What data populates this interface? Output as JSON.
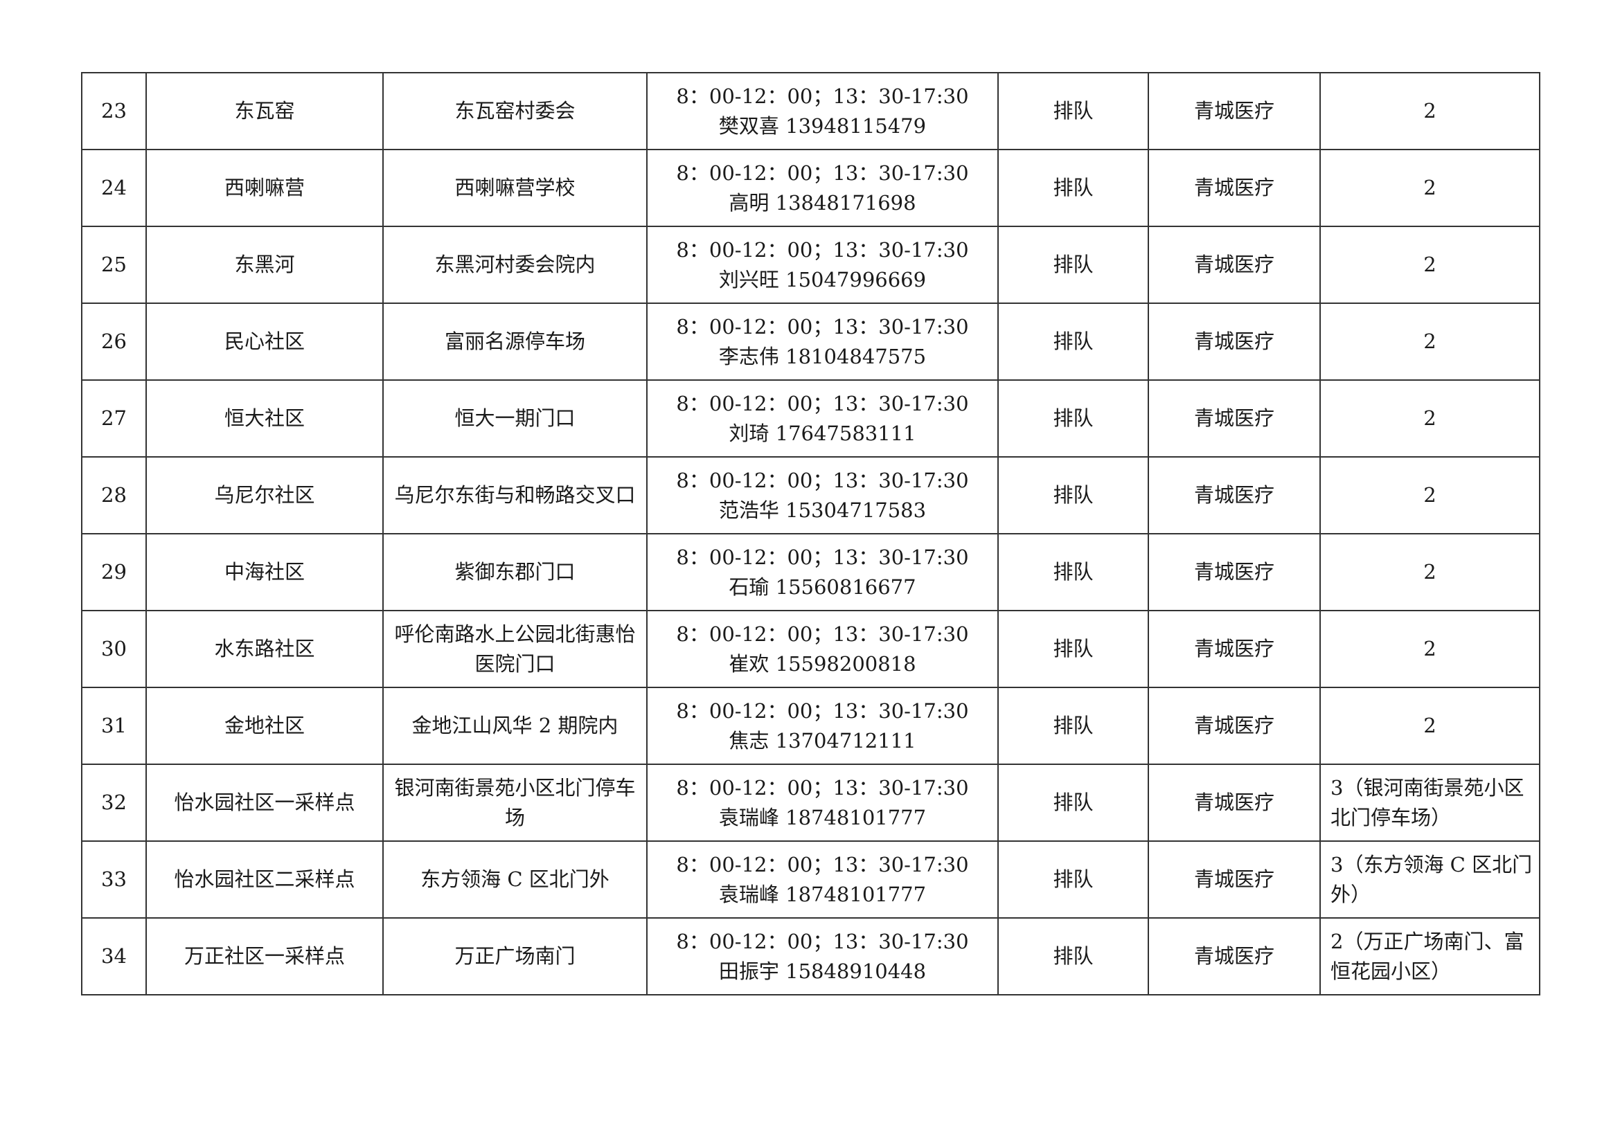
{
  "rows": [
    {
      "no": "23",
      "community": "东瓦窑",
      "location": "东瓦窑村委会",
      "hours": "8：00-12：00；13：30-17:30",
      "contact": "樊双喜 13948115479",
      "mode": "排队",
      "provider": "青城医疗",
      "count": "2"
    },
    {
      "no": "24",
      "community": "西喇嘛营",
      "location": "西喇嘛营学校",
      "hours": "8：00-12：00；13：30-17:30",
      "contact": "高明 13848171698",
      "mode": "排队",
      "provider": "青城医疗",
      "count": "2"
    },
    {
      "no": "25",
      "community": "东黑河",
      "location": "东黑河村委会院内",
      "hours": "8：00-12：00；13：30-17:30",
      "contact": "刘兴旺 15047996669",
      "mode": "排队",
      "provider": "青城医疗",
      "count": "2"
    },
    {
      "no": "26",
      "community": "民心社区",
      "location": "富丽名源停车场",
      "hours": "8：00-12：00；13：30-17:30",
      "contact": "李志伟 18104847575",
      "mode": "排队",
      "provider": "青城医疗",
      "count": "2"
    },
    {
      "no": "27",
      "community": "恒大社区",
      "location": "恒大一期门口",
      "hours": "8：00-12：00；13：30-17:30",
      "contact": "刘琦 17647583111",
      "mode": "排队",
      "provider": "青城医疗",
      "count": "2"
    },
    {
      "no": "28",
      "community": "乌尼尔社区",
      "location": "乌尼尔东街与和畅路交叉口",
      "hours": "8：00-12：00；13：30-17:30",
      "contact": "范浩华 15304717583",
      "mode": "排队",
      "provider": "青城医疗",
      "count": "2"
    },
    {
      "no": "29",
      "community": "中海社区",
      "location": "紫御东郡门口",
      "hours": "8：00-12：00；13：30-17:30",
      "contact": "石瑜 15560816677",
      "mode": "排队",
      "provider": "青城医疗",
      "count": "2"
    },
    {
      "no": "30",
      "community": "水东路社区",
      "location": "呼伦南路水上公园北街惠怡医院门口",
      "hours": "8：00-12：00；13：30-17:30",
      "contact": "崔欢 15598200818",
      "mode": "排队",
      "provider": "青城医疗",
      "count": "2"
    },
    {
      "no": "31",
      "community": "金地社区",
      "location": "金地江山风华 2 期院内",
      "hours": "8：00-12：00；13：30-17:30",
      "contact": "焦志 13704712111",
      "mode": "排队",
      "provider": "青城医疗",
      "count": "2"
    },
    {
      "no": "32",
      "community": "怡水园社区一采样点",
      "location": "银河南街景苑小区北门停车场",
      "hours": "8：00-12：00；13：30-17:30",
      "contact": "袁瑞峰 18748101777",
      "mode": "排队",
      "provider": "青城医疗",
      "count": "3（银河南街景苑小区北门停车场）"
    },
    {
      "no": "33",
      "community": "怡水园社区二采样点",
      "location": "东方领海 C 区北门外",
      "hours": "8：00-12：00；13：30-17:30",
      "contact": "袁瑞峰 18748101777",
      "mode": "排队",
      "provider": "青城医疗",
      "count": "3（东方领海 C 区北门外）"
    },
    {
      "no": "34",
      "community": "万正社区一采样点",
      "location": "万正广场南门",
      "hours": "8：00-12：00；13：30-17:30",
      "contact": "田振宇 15848910448",
      "mode": "排队",
      "provider": "青城医疗",
      "count": "2（万正广场南门、富恒花园小区）"
    }
  ]
}
